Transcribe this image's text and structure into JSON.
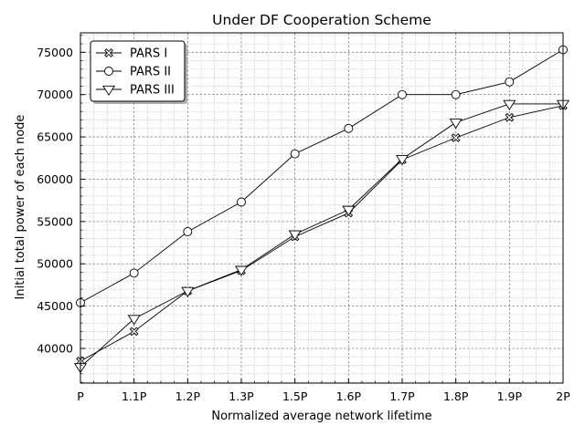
{
  "chart_data": {
    "type": "line",
    "title": "Under DF Cooperation Scheme",
    "xlabel": "Normalized average network lifetime",
    "ylabel": "Initial total power of each node",
    "categories": [
      "P",
      "1.1P",
      "1.2P",
      "1.3P",
      "1.5P",
      "1.6P",
      "1.7P",
      "1.8P",
      "1.9P",
      "2P"
    ],
    "ylim": [
      35900,
      77300
    ],
    "yticks": [
      40000,
      45000,
      50000,
      55000,
      60000,
      65000,
      70000,
      75000
    ],
    "grid": true,
    "legend_position": "top-left",
    "series": [
      {
        "name": "PARS I",
        "marker": "cross",
        "values": [
          38500,
          42000,
          46800,
          49200,
          53200,
          56000,
          62300,
          64900,
          67300,
          68700
        ]
      },
      {
        "name": "PARS II",
        "marker": "circle",
        "values": [
          45400,
          48900,
          53800,
          57300,
          63000,
          66000,
          70000,
          70000,
          71500,
          75300
        ]
      },
      {
        "name": "PARS III",
        "marker": "triangle-down",
        "values": [
          37800,
          43500,
          46800,
          49300,
          53500,
          56400,
          62400,
          66700,
          68900,
          68900
        ]
      }
    ]
  }
}
